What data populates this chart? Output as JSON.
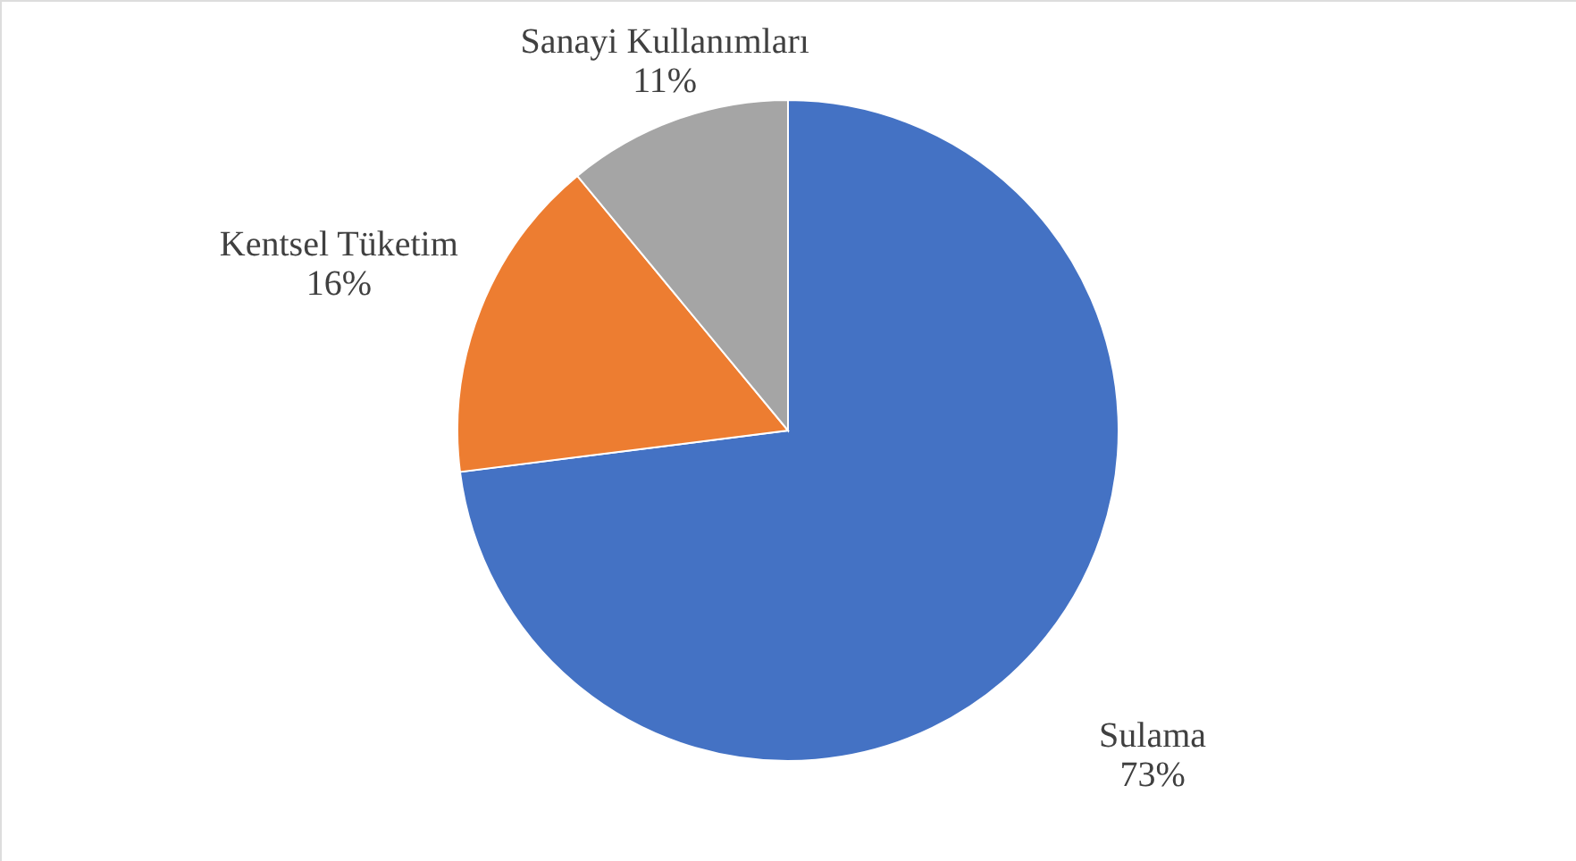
{
  "chart_data": {
    "type": "pie",
    "categories": [
      "Sulama",
      "Kentsel Tüketim",
      "Sanayi Kullanımları"
    ],
    "values": [
      73,
      16,
      11
    ],
    "colors": [
      "#4472c4",
      "#ed7d31",
      "#a5a5a5"
    ],
    "value_labels": [
      "73%",
      "16%",
      "11%"
    ]
  }
}
